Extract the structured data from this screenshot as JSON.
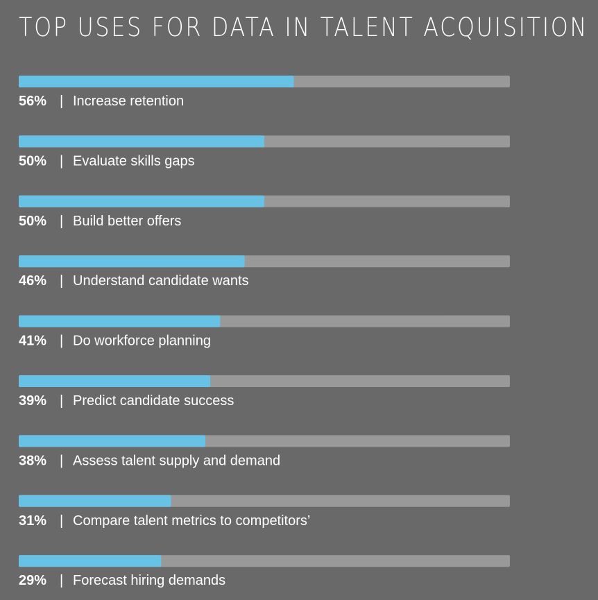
{
  "chart_data": {
    "type": "bar",
    "orientation": "horizontal",
    "title": "TOP USES FOR DATA IN TALENT ACQUISITION",
    "categories": [
      "Increase retention",
      "Evaluate skills gaps",
      "Build better offers",
      "Understand candidate wants",
      "Do workforce planning",
      "Predict candidate success",
      "Assess talent supply and demand",
      "Compare talent metrics to competitors’",
      "Forecast hiring demands"
    ],
    "values": [
      56,
      50,
      50,
      46,
      41,
      39,
      38,
      31,
      29
    ],
    "value_labels": [
      "56%",
      "50%",
      "50%",
      "46%",
      "41%",
      "39%",
      "38%",
      "31%",
      "29%"
    ],
    "separator": "|",
    "xlim": [
      0,
      100
    ],
    "grid": false,
    "legend": "none",
    "colors": {
      "background": "#696969",
      "bar_fill": "#67c2e6",
      "bar_track": "#999999",
      "text": "#ffffff"
    }
  }
}
